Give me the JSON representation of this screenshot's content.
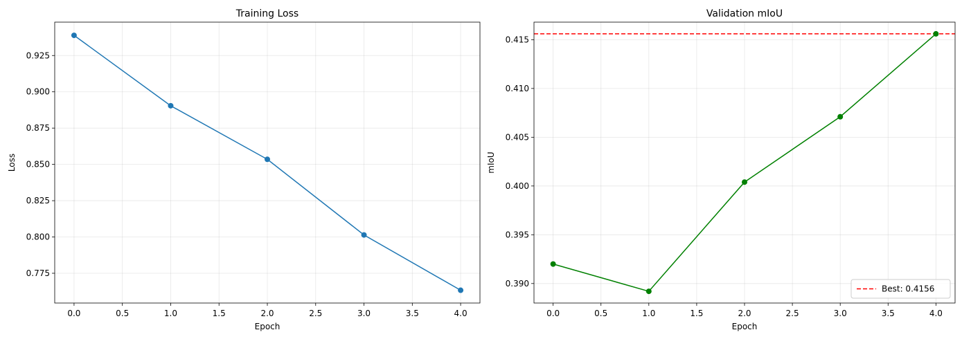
{
  "chart_data": [
    {
      "type": "line",
      "title": "Training Loss",
      "xlabel": "Epoch",
      "ylabel": "Loss",
      "xlim": [
        -0.2,
        4.2
      ],
      "ylim": [
        0.7545,
        0.948
      ],
      "xticks": [
        0.0,
        0.5,
        1.0,
        1.5,
        2.0,
        2.5,
        3.0,
        3.5,
        4.0
      ],
      "xtick_labels": [
        "0.0",
        "0.5",
        "1.0",
        "1.5",
        "2.0",
        "2.5",
        "3.0",
        "3.5",
        "4.0"
      ],
      "yticks": [
        0.775,
        0.8,
        0.825,
        0.85,
        0.875,
        0.9,
        0.925
      ],
      "ytick_labels": [
        "0.775",
        "0.800",
        "0.825",
        "0.850",
        "0.875",
        "0.900",
        "0.925"
      ],
      "grid": true,
      "series": [
        {
          "x": [
            0,
            1,
            2,
            3,
            4
          ],
          "y": [
            0.9389,
            0.8904,
            0.8535,
            0.8014,
            0.7633
          ],
          "color": "#1f77b4",
          "marker": "circle"
        }
      ]
    },
    {
      "type": "line",
      "title": "Validation mIoU",
      "xlabel": "Epoch",
      "ylabel": "mIoU",
      "xlim": [
        -0.2,
        4.2
      ],
      "ylim": [
        0.388,
        0.4168
      ],
      "xticks": [
        0.0,
        0.5,
        1.0,
        1.5,
        2.0,
        2.5,
        3.0,
        3.5,
        4.0
      ],
      "xtick_labels": [
        "0.0",
        "0.5",
        "1.0",
        "1.5",
        "2.0",
        "2.5",
        "3.0",
        "3.5",
        "4.0"
      ],
      "yticks": [
        0.39,
        0.395,
        0.4,
        0.405,
        0.41,
        0.415
      ],
      "ytick_labels": [
        "0.390",
        "0.395",
        "0.400",
        "0.405",
        "0.410",
        "0.415"
      ],
      "grid": true,
      "series": [
        {
          "x": [
            0,
            1,
            2,
            3,
            4
          ],
          "y": [
            0.392,
            0.3892,
            0.4004,
            0.4071,
            0.4156
          ],
          "color": "#008000",
          "marker": "circle"
        }
      ],
      "hline": {
        "y": 0.4156,
        "color": "#ff0000",
        "style": "dashed",
        "label": "Best: 0.4156"
      },
      "legend": "lower-right"
    }
  ]
}
